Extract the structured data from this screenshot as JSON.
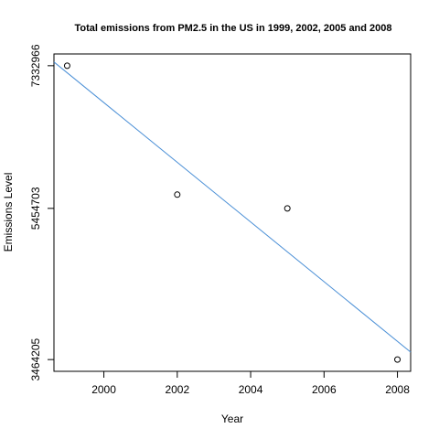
{
  "chart_data": {
    "type": "scatter",
    "title": "Total emissions from PM2.5 in the US in 1999, 2002, 2005 and 2008",
    "xlabel": "Year",
    "ylabel": "Emissions Level",
    "x": [
      1999,
      2002,
      2005,
      2008
    ],
    "y": [
      7332966,
      5635780,
      5454703,
      3464205
    ],
    "x_ticks": [
      2000,
      2002,
      2004,
      2006,
      2008
    ],
    "x_tick_labels": [
      "2000",
      "2002",
      "2004",
      "2006",
      "2008"
    ],
    "y_ticks": [
      3464205,
      5454703,
      7332966
    ],
    "y_tick_labels": [
      "3464205",
      "5454703",
      "7332966"
    ],
    "xlim": [
      1998.64,
      2008.36
    ],
    "ylim": [
      3309468,
      7487703
    ],
    "trend_line": {
      "type": "linear-fit",
      "color": "#4a8fd6"
    },
    "point_style": "open-circle",
    "grid": false,
    "legend": "none"
  }
}
